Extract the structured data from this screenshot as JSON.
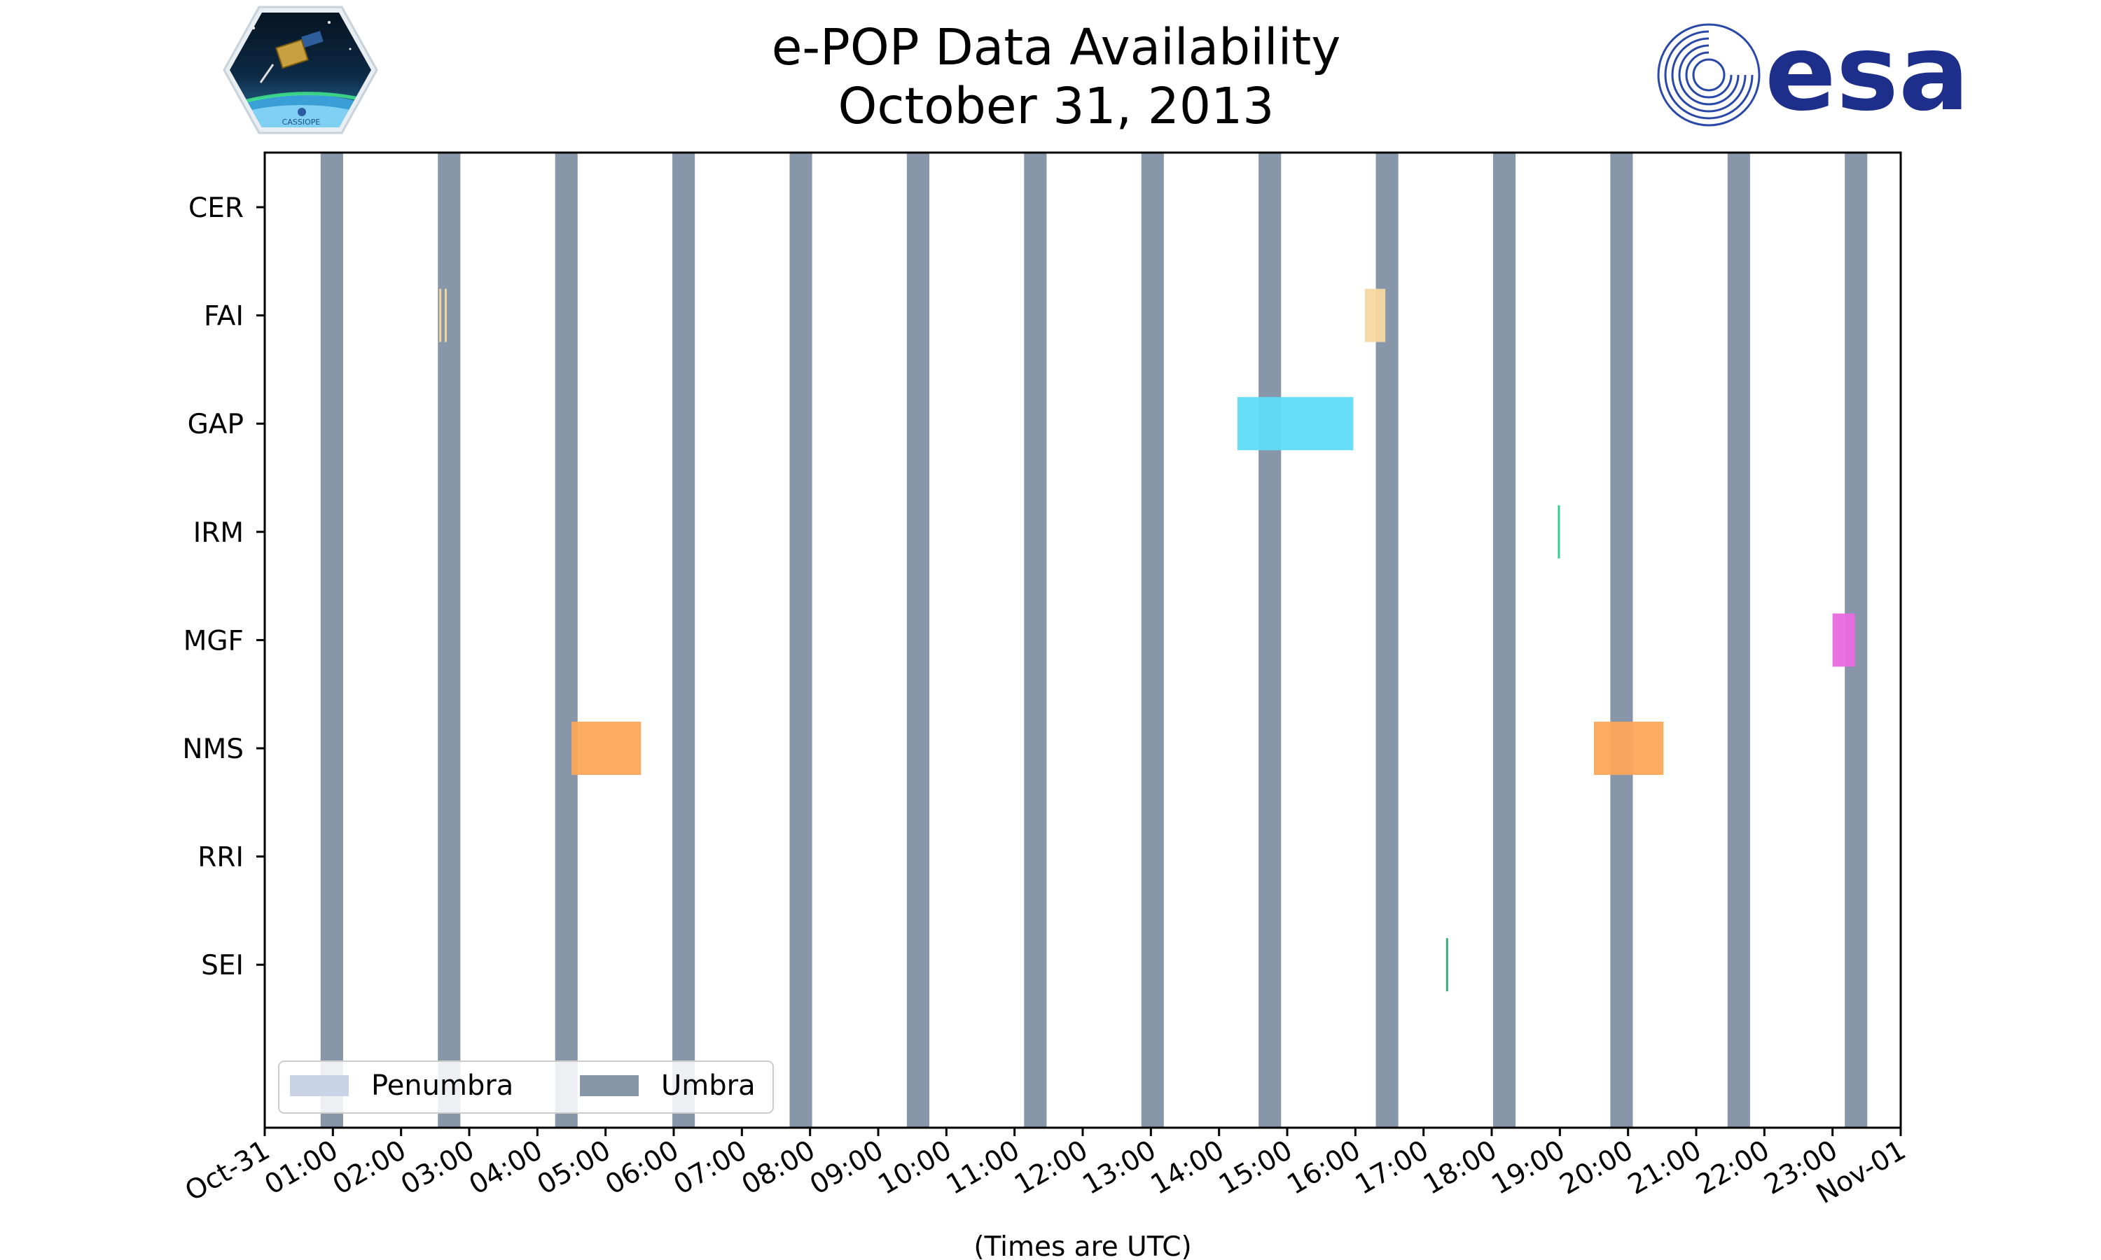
{
  "header": {
    "title_line1": "e-POP Data Availability",
    "title_line2": "October 31, 2013",
    "left_logo_text": "CASSIOPE",
    "right_logo_text": "esa"
  },
  "colors": {
    "umbra": "#8796a8",
    "penumbra": "#c9d5e6",
    "fai": "#f5d7a0",
    "gap": "#5fdcf7",
    "irm": "#2ec98a",
    "mgf": "#e86adf",
    "nms": "#fca75a",
    "sei": "#2aa870",
    "esa_blue": "#1d2f8a"
  },
  "chart_data": {
    "type": "timeline",
    "title": "e-POP Data Availability\nOctober 31, 2013",
    "xlabel": "(Times are UTC)",
    "x_range_hours": [
      0,
      24
    ],
    "x_ticks": [
      {
        "hour": 0,
        "label": "Oct-31"
      },
      {
        "hour": 1,
        "label": "01:00"
      },
      {
        "hour": 2,
        "label": "02:00"
      },
      {
        "hour": 3,
        "label": "03:00"
      },
      {
        "hour": 4,
        "label": "04:00"
      },
      {
        "hour": 5,
        "label": "05:00"
      },
      {
        "hour": 6,
        "label": "06:00"
      },
      {
        "hour": 7,
        "label": "07:00"
      },
      {
        "hour": 8,
        "label": "08:00"
      },
      {
        "hour": 9,
        "label": "09:00"
      },
      {
        "hour": 10,
        "label": "10:00"
      },
      {
        "hour": 11,
        "label": "11:00"
      },
      {
        "hour": 12,
        "label": "12:00"
      },
      {
        "hour": 13,
        "label": "13:00"
      },
      {
        "hour": 14,
        "label": "14:00"
      },
      {
        "hour": 15,
        "label": "15:00"
      },
      {
        "hour": 16,
        "label": "16:00"
      },
      {
        "hour": 17,
        "label": "17:00"
      },
      {
        "hour": 18,
        "label": "18:00"
      },
      {
        "hour": 19,
        "label": "19:00"
      },
      {
        "hour": 20,
        "label": "20:00"
      },
      {
        "hour": 21,
        "label": "21:00"
      },
      {
        "hour": 22,
        "label": "22:00"
      },
      {
        "hour": 23,
        "label": "23:00"
      },
      {
        "hour": 24,
        "label": "Nov-01"
      }
    ],
    "instruments": [
      "CER",
      "FAI",
      "GAP",
      "IRM",
      "MGF",
      "NMS",
      "RRI",
      "SEI"
    ],
    "umbra_intervals": [
      [
        0.82,
        1.15
      ],
      [
        2.54,
        2.87
      ],
      [
        4.26,
        4.59
      ],
      [
        5.98,
        6.31
      ],
      [
        7.7,
        8.03
      ],
      [
        9.42,
        9.75
      ],
      [
        11.14,
        11.47
      ],
      [
        12.86,
        13.19
      ],
      [
        14.58,
        14.91
      ],
      [
        16.3,
        16.63
      ],
      [
        18.02,
        18.35
      ],
      [
        19.74,
        20.07
      ],
      [
        21.46,
        21.79
      ],
      [
        23.18,
        23.51
      ]
    ],
    "penumbra_intervals": [],
    "availability": [
      {
        "instrument": "FAI",
        "color_key": "fai",
        "intervals": [
          [
            2.56,
            2.58
          ],
          [
            2.64,
            2.66
          ],
          [
            16.14,
            16.44
          ]
        ]
      },
      {
        "instrument": "GAP",
        "color_key": "gap",
        "intervals": [
          [
            14.27,
            15.97
          ]
        ]
      },
      {
        "instrument": "IRM",
        "color_key": "irm",
        "intervals": [
          [
            18.97,
            19.0
          ]
        ]
      },
      {
        "instrument": "MGF",
        "color_key": "mgf",
        "intervals": [
          [
            23.0,
            23.33
          ]
        ]
      },
      {
        "instrument": "NMS",
        "color_key": "nms",
        "intervals": [
          [
            4.5,
            5.52
          ],
          [
            19.5,
            20.52
          ]
        ]
      },
      {
        "instrument": "SEI",
        "color_key": "sei",
        "intervals": [
          [
            17.33,
            17.36
          ]
        ]
      }
    ],
    "legend": {
      "location": "lower-left",
      "entries": [
        {
          "label": "Penumbra",
          "color_key": "penumbra"
        },
        {
          "label": "Umbra",
          "color_key": "umbra"
        }
      ]
    }
  }
}
